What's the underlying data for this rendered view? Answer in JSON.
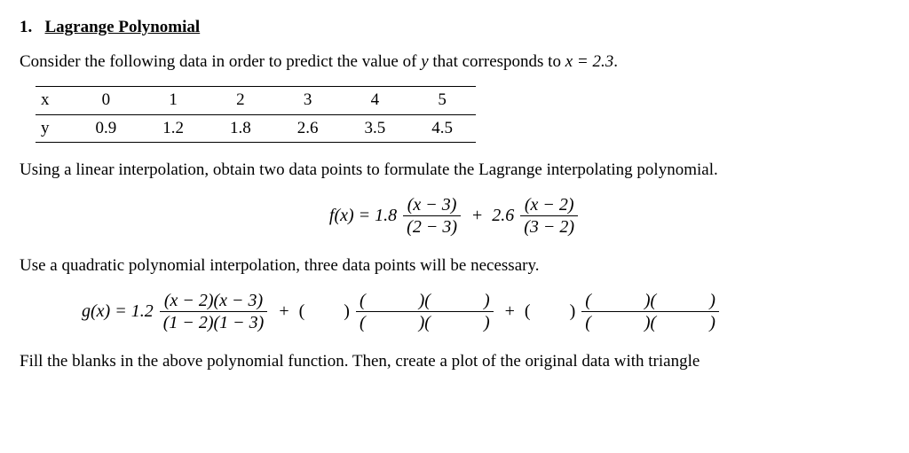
{
  "heading": {
    "number": "1.",
    "title": "Lagrange Polynomial"
  },
  "intro": {
    "prefix": "Consider the following data in order to predict the value of ",
    "var": "y",
    "mid": " that corresponds to ",
    "eq": "x = 2.3",
    "suffix": "."
  },
  "table": {
    "row_x_label": "x",
    "row_y_label": "y",
    "x": [
      "0",
      "1",
      "2",
      "3",
      "4",
      "5"
    ],
    "y": [
      "0.9",
      "1.2",
      "1.8",
      "2.6",
      "3.5",
      "4.5"
    ]
  },
  "linear_text": "Using a linear interpolation, obtain two data points to formulate the Lagrange interpolating polynomial.",
  "fx": {
    "lhs": "f(x) = ",
    "c1": "1.8",
    "t1_num": "(x − 3)",
    "t1_den": "(2 − 3)",
    "plus": "+",
    "c2": "2.6",
    "t2_num": "(x − 2)",
    "t2_den": "(3 − 2)"
  },
  "quad_text": "Use a quadratic polynomial interpolation, three data points will be necessary.",
  "gx": {
    "lhs": "g(x) = ",
    "c1": "1.2",
    "t1_num": "(x − 2)(x − 3)",
    "t1_den": "(1 − 2)(1 − 3)",
    "plus": "+",
    "blank_coef_open": "(",
    "blank_coef_close": ")",
    "blank_pair_num": "(            )(            )",
    "blank_pair_den": "(            )(            )"
  },
  "fill_text": "Fill the blanks in the above polynomial function. Then, create a plot of the original data with triangle"
}
